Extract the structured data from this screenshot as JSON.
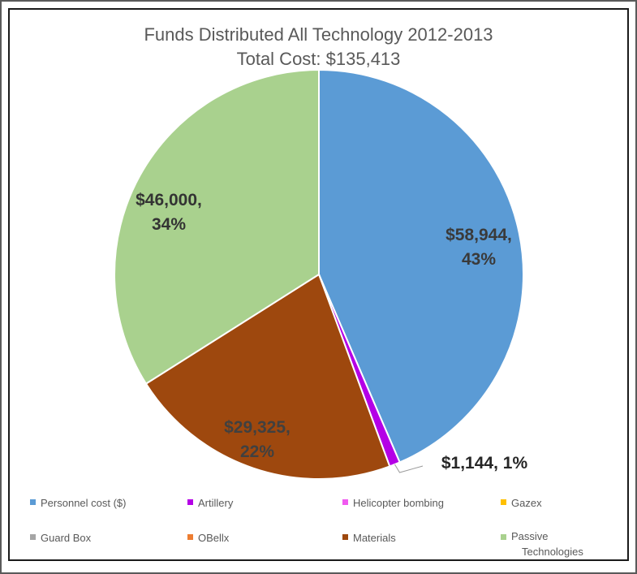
{
  "chart_data": {
    "type": "pie",
    "title": "Funds Distributed All Technology 2012-2013",
    "subtitle": "Total Cost: $135,413",
    "slices": [
      {
        "name": "Personnel cost ($)",
        "value": 58944,
        "label": "$58,944, 43%",
        "color": "#5B9BD5"
      },
      {
        "name": "Artillery",
        "value": 1144,
        "label": "$1,144, 1%",
        "color": "#B400E6"
      },
      {
        "name": "Helicopter bombing",
        "value": 0,
        "label": "",
        "color": "#F05AF0"
      },
      {
        "name": "Gazex",
        "value": 0,
        "label": "",
        "color": "#FFC000"
      },
      {
        "name": "Guard Box",
        "value": 0,
        "label": "",
        "color": "#A5A5A5"
      },
      {
        "name": "OBellx",
        "value": 0,
        "label": "",
        "color": "#ED7D31"
      },
      {
        "name": "Materials",
        "value": 29325,
        "label": "$29,325, 22%",
        "color": "#9E480E"
      },
      {
        "name": "Passive Technologies",
        "value": 46000,
        "label": "$46,000, 34%",
        "color": "#A9D18E"
      }
    ],
    "legend": {
      "position": "bottom",
      "items": [
        {
          "label": "Personnel cost ($)",
          "color": "#5B9BD5"
        },
        {
          "label": "Artillery",
          "color": "#B400E6"
        },
        {
          "label": "Helicopter bombing",
          "color": "#F05AF0"
        },
        {
          "label": "Gazex",
          "color": "#FFC000"
        },
        {
          "label": "Guard Box",
          "color": "#A5A5A5"
        },
        {
          "label": "OBellx",
          "color": "#ED7D31"
        },
        {
          "label": "Materials",
          "color": "#9E480E"
        },
        {
          "label": "Passive Technologies",
          "color": "#A9D18E"
        }
      ]
    }
  }
}
